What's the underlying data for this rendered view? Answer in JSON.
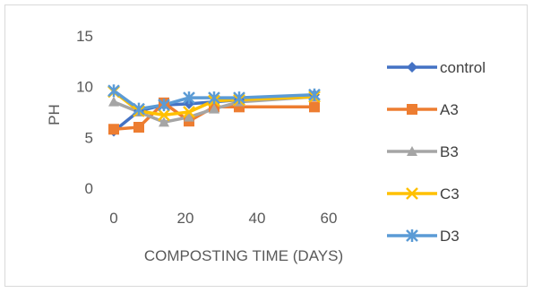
{
  "chart_data": {
    "type": "line",
    "title": "",
    "xlabel": "COMPOSTING TIME (DAYS)",
    "ylabel": "PH",
    "xlim": [
      0,
      60
    ],
    "ylim": [
      0,
      15
    ],
    "xticks": [
      0,
      20,
      40,
      60
    ],
    "yticks": [
      0,
      5,
      10,
      15
    ],
    "x_tick_labels": [
      "0",
      "20",
      "40",
      "60"
    ],
    "y_tick_labels": [
      "0",
      "5",
      "10",
      "15"
    ],
    "grid": false,
    "legend_position": "right",
    "x": [
      0,
      7,
      14,
      21,
      28,
      35,
      56
    ],
    "series": [
      {
        "name": "control",
        "color": "#4472c4",
        "marker": "diamond",
        "values": [
          5.6,
          7.6,
          8.2,
          8.3,
          8.5,
          8.7,
          9.2
        ]
      },
      {
        "name": "A3",
        "color": "#ed7d31",
        "marker": "square",
        "values": [
          5.8,
          6.0,
          8.4,
          6.6,
          8.0,
          8.0,
          8.0
        ]
      },
      {
        "name": "B3",
        "color": "#a5a5a5",
        "marker": "triangle",
        "values": [
          8.5,
          7.5,
          6.5,
          7.0,
          7.8,
          8.5,
          9.0
        ]
      },
      {
        "name": "C3",
        "color": "#ffc000",
        "marker": "x",
        "values": [
          9.5,
          7.6,
          7.2,
          7.5,
          8.6,
          8.7,
          9.0
        ]
      },
      {
        "name": "D3",
        "color": "#5b9bd5",
        "marker": "star",
        "values": [
          9.6,
          7.8,
          8.2,
          8.9,
          8.9,
          8.9,
          9.2
        ]
      }
    ]
  }
}
